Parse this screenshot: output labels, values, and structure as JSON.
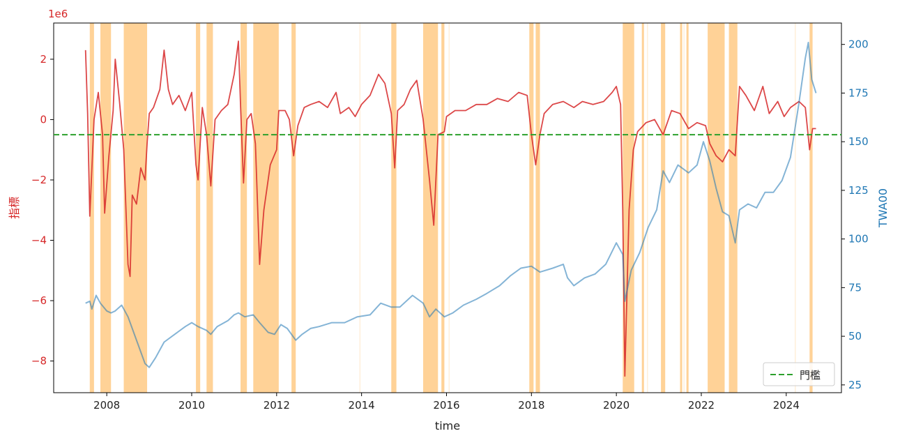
{
  "chart_data": {
    "type": "line",
    "xlabel": "time",
    "y_left": {
      "label": "指標",
      "scale_note": "1e6",
      "ylim": [
        -9.05,
        3.2
      ],
      "ticks": [
        2,
        0,
        -2,
        -4,
        -6,
        -8
      ],
      "tick_labels": [
        "2",
        "0",
        "−2",
        "−4",
        "−6",
        "−8"
      ],
      "color": "#d62728"
    },
    "y_right": {
      "label": "TWA00",
      "ylim": [
        21,
        211
      ],
      "ticks": [
        25,
        50,
        75,
        100,
        125,
        150,
        175,
        200
      ],
      "tick_labels": [
        "25",
        "50",
        "75",
        "100",
        "125",
        "150",
        "175",
        "200"
      ],
      "color": "#1f77b4"
    },
    "xlim": [
      2006.75,
      2025.3
    ],
    "x_ticks": [
      2008,
      2010,
      2012,
      2014,
      2016,
      2018,
      2020,
      2022,
      2024
    ],
    "x_tick_labels": [
      "2008",
      "2010",
      "2012",
      "2014",
      "2016",
      "2018",
      "2020",
      "2022",
      "2024"
    ],
    "threshold": {
      "name": "門檻",
      "value": -0.5,
      "color": "#2ca02c",
      "style": "dashed"
    },
    "legend": {
      "position": "bottom-right",
      "entries": [
        "門檻"
      ]
    },
    "shaded_periods": [
      [
        2007.6,
        2007.7
      ],
      [
        2007.85,
        2008.1
      ],
      [
        2008.4,
        2008.95
      ],
      [
        2010.1,
        2010.2
      ],
      [
        2010.35,
        2010.5
      ],
      [
        2011.15,
        2011.3
      ],
      [
        2011.45,
        2012.05
      ],
      [
        2012.35,
        2012.45
      ],
      [
        2014.7,
        2014.82
      ],
      [
        2015.45,
        2015.8
      ],
      [
        2015.88,
        2015.95
      ],
      [
        2017.95,
        2018.05
      ],
      [
        2018.1,
        2018.2
      ],
      [
        2020.15,
        2020.42
      ],
      [
        2020.6,
        2020.65
      ],
      [
        2021.05,
        2021.15
      ],
      [
        2021.5,
        2021.55
      ],
      [
        2021.65,
        2021.7
      ],
      [
        2022.15,
        2022.55
      ],
      [
        2022.65,
        2022.85
      ],
      [
        2024.55,
        2024.62
      ]
    ],
    "series": [
      {
        "name": "指標",
        "axis": "left",
        "color": "#d62728",
        "points": [
          [
            2007.5,
            2.3
          ],
          [
            2007.55,
            0.2
          ],
          [
            2007.6,
            -3.2
          ],
          [
            2007.7,
            0.0
          ],
          [
            2007.8,
            0.9
          ],
          [
            2007.9,
            -0.5
          ],
          [
            2007.95,
            -3.1
          ],
          [
            2008.05,
            -1.2
          ],
          [
            2008.15,
            0.3
          ],
          [
            2008.2,
            2.0
          ],
          [
            2008.3,
            0.6
          ],
          [
            2008.4,
            -1.0
          ],
          [
            2008.5,
            -4.8
          ],
          [
            2008.55,
            -5.2
          ],
          [
            2008.6,
            -2.5
          ],
          [
            2008.7,
            -2.8
          ],
          [
            2008.8,
            -1.6
          ],
          [
            2008.9,
            -2.0
          ],
          [
            2008.95,
            -0.8
          ],
          [
            2009.0,
            0.2
          ],
          [
            2009.1,
            0.4
          ],
          [
            2009.25,
            1.0
          ],
          [
            2009.35,
            2.3
          ],
          [
            2009.45,
            1.0
          ],
          [
            2009.55,
            0.5
          ],
          [
            2009.7,
            0.8
          ],
          [
            2009.85,
            0.3
          ],
          [
            2010.0,
            0.9
          ],
          [
            2010.1,
            -1.5
          ],
          [
            2010.15,
            -2.0
          ],
          [
            2010.25,
            0.4
          ],
          [
            2010.35,
            -0.5
          ],
          [
            2010.45,
            -2.2
          ],
          [
            2010.55,
            0.0
          ],
          [
            2010.7,
            0.3
          ],
          [
            2010.85,
            0.5
          ],
          [
            2011.0,
            1.5
          ],
          [
            2011.1,
            2.6
          ],
          [
            2011.15,
            0.5
          ],
          [
            2011.22,
            -2.1
          ],
          [
            2011.3,
            0.0
          ],
          [
            2011.4,
            0.2
          ],
          [
            2011.5,
            -0.8
          ],
          [
            2011.6,
            -4.8
          ],
          [
            2011.7,
            -3.0
          ],
          [
            2011.85,
            -1.5
          ],
          [
            2012.0,
            -1.0
          ],
          [
            2012.05,
            0.3
          ],
          [
            2012.2,
            0.3
          ],
          [
            2012.3,
            0.0
          ],
          [
            2012.4,
            -1.2
          ],
          [
            2012.5,
            -0.2
          ],
          [
            2012.65,
            0.4
          ],
          [
            2012.8,
            0.5
          ],
          [
            2013.0,
            0.6
          ],
          [
            2013.2,
            0.4
          ],
          [
            2013.4,
            0.9
          ],
          [
            2013.5,
            0.2
          ],
          [
            2013.7,
            0.4
          ],
          [
            2013.85,
            0.1
          ],
          [
            2014.0,
            0.5
          ],
          [
            2014.2,
            0.8
          ],
          [
            2014.4,
            1.5
          ],
          [
            2014.55,
            1.2
          ],
          [
            2014.7,
            0.2
          ],
          [
            2014.78,
            -1.6
          ],
          [
            2014.85,
            0.3
          ],
          [
            2015.0,
            0.5
          ],
          [
            2015.15,
            1.0
          ],
          [
            2015.3,
            1.3
          ],
          [
            2015.45,
            0.0
          ],
          [
            2015.6,
            -2.0
          ],
          [
            2015.7,
            -3.5
          ],
          [
            2015.8,
            -0.5
          ],
          [
            2015.95,
            -0.4
          ],
          [
            2016.0,
            0.1
          ],
          [
            2016.2,
            0.3
          ],
          [
            2016.45,
            0.3
          ],
          [
            2016.7,
            0.5
          ],
          [
            2016.95,
            0.5
          ],
          [
            2017.2,
            0.7
          ],
          [
            2017.45,
            0.6
          ],
          [
            2017.7,
            0.9
          ],
          [
            2017.9,
            0.8
          ],
          [
            2018.0,
            -0.5
          ],
          [
            2018.1,
            -1.5
          ],
          [
            2018.2,
            -0.5
          ],
          [
            2018.3,
            0.2
          ],
          [
            2018.5,
            0.5
          ],
          [
            2018.75,
            0.6
          ],
          [
            2019.0,
            0.4
          ],
          [
            2019.2,
            0.6
          ],
          [
            2019.45,
            0.5
          ],
          [
            2019.7,
            0.6
          ],
          [
            2019.9,
            0.9
          ],
          [
            2020.0,
            1.1
          ],
          [
            2020.1,
            0.5
          ],
          [
            2020.15,
            -3.0
          ],
          [
            2020.2,
            -8.5
          ],
          [
            2020.3,
            -3.0
          ],
          [
            2020.4,
            -1.0
          ],
          [
            2020.5,
            -0.4
          ],
          [
            2020.7,
            -0.1
          ],
          [
            2020.9,
            0.0
          ],
          [
            2021.1,
            -0.5
          ],
          [
            2021.3,
            0.3
          ],
          [
            2021.5,
            0.2
          ],
          [
            2021.7,
            -0.3
          ],
          [
            2021.9,
            -0.1
          ],
          [
            2022.1,
            -0.2
          ],
          [
            2022.2,
            -0.8
          ],
          [
            2022.35,
            -1.2
          ],
          [
            2022.5,
            -1.4
          ],
          [
            2022.65,
            -1.0
          ],
          [
            2022.8,
            -1.2
          ],
          [
            2022.9,
            1.1
          ],
          [
            2023.05,
            0.8
          ],
          [
            2023.25,
            0.3
          ],
          [
            2023.45,
            1.1
          ],
          [
            2023.6,
            0.2
          ],
          [
            2023.8,
            0.6
          ],
          [
            2023.95,
            0.1
          ],
          [
            2024.1,
            0.4
          ],
          [
            2024.3,
            0.6
          ],
          [
            2024.45,
            0.4
          ],
          [
            2024.55,
            -1.0
          ],
          [
            2024.62,
            -0.3
          ],
          [
            2024.7,
            -0.3
          ]
        ]
      },
      {
        "name": "TWA00",
        "axis": "right",
        "color": "#1f77b4",
        "points": [
          [
            2007.5,
            67
          ],
          [
            2007.6,
            68
          ],
          [
            2007.65,
            64
          ],
          [
            2007.75,
            71
          ],
          [
            2007.85,
            67
          ],
          [
            2008.0,
            63
          ],
          [
            2008.1,
            62
          ],
          [
            2008.2,
            63
          ],
          [
            2008.35,
            66
          ],
          [
            2008.5,
            60
          ],
          [
            2008.7,
            48
          ],
          [
            2008.9,
            36
          ],
          [
            2009.0,
            34
          ],
          [
            2009.15,
            39
          ],
          [
            2009.35,
            47
          ],
          [
            2009.6,
            51
          ],
          [
            2009.85,
            55
          ],
          [
            2010.0,
            57
          ],
          [
            2010.15,
            55
          ],
          [
            2010.35,
            53
          ],
          [
            2010.45,
            51
          ],
          [
            2010.6,
            55
          ],
          [
            2010.85,
            58
          ],
          [
            2011.0,
            61
          ],
          [
            2011.1,
            62
          ],
          [
            2011.25,
            60
          ],
          [
            2011.45,
            61
          ],
          [
            2011.6,
            57
          ],
          [
            2011.8,
            52
          ],
          [
            2011.95,
            51
          ],
          [
            2012.1,
            56
          ],
          [
            2012.25,
            54
          ],
          [
            2012.45,
            48
          ],
          [
            2012.6,
            51
          ],
          [
            2012.8,
            54
          ],
          [
            2013.0,
            55
          ],
          [
            2013.3,
            57
          ],
          [
            2013.6,
            57
          ],
          [
            2013.9,
            60
          ],
          [
            2014.2,
            61
          ],
          [
            2014.45,
            67
          ],
          [
            2014.7,
            65
          ],
          [
            2014.9,
            65
          ],
          [
            2015.2,
            71
          ],
          [
            2015.45,
            67
          ],
          [
            2015.6,
            60
          ],
          [
            2015.75,
            64
          ],
          [
            2015.95,
            60
          ],
          [
            2016.15,
            62
          ],
          [
            2016.4,
            66
          ],
          [
            2016.7,
            69
          ],
          [
            2016.95,
            72
          ],
          [
            2017.25,
            76
          ],
          [
            2017.5,
            81
          ],
          [
            2017.75,
            85
          ],
          [
            2018.0,
            86
          ],
          [
            2018.2,
            83
          ],
          [
            2018.5,
            85
          ],
          [
            2018.75,
            87
          ],
          [
            2018.85,
            80
          ],
          [
            2019.0,
            76
          ],
          [
            2019.25,
            80
          ],
          [
            2019.5,
            82
          ],
          [
            2019.75,
            87
          ],
          [
            2020.0,
            98
          ],
          [
            2020.15,
            92
          ],
          [
            2020.2,
            68
          ],
          [
            2020.35,
            84
          ],
          [
            2020.55,
            93
          ],
          [
            2020.75,
            106
          ],
          [
            2020.95,
            115
          ],
          [
            2021.1,
            135
          ],
          [
            2021.25,
            129
          ],
          [
            2021.45,
            138
          ],
          [
            2021.7,
            134
          ],
          [
            2021.9,
            138
          ],
          [
            2022.05,
            150
          ],
          [
            2022.2,
            140
          ],
          [
            2022.35,
            126
          ],
          [
            2022.5,
            114
          ],
          [
            2022.65,
            112
          ],
          [
            2022.8,
            98
          ],
          [
            2022.9,
            115
          ],
          [
            2023.1,
            118
          ],
          [
            2023.3,
            116
          ],
          [
            2023.5,
            124
          ],
          [
            2023.7,
            124
          ],
          [
            2023.9,
            130
          ],
          [
            2024.1,
            142
          ],
          [
            2024.3,
            170
          ],
          [
            2024.45,
            193
          ],
          [
            2024.52,
            201
          ],
          [
            2024.6,
            182
          ],
          [
            2024.7,
            175
          ]
        ]
      }
    ]
  }
}
